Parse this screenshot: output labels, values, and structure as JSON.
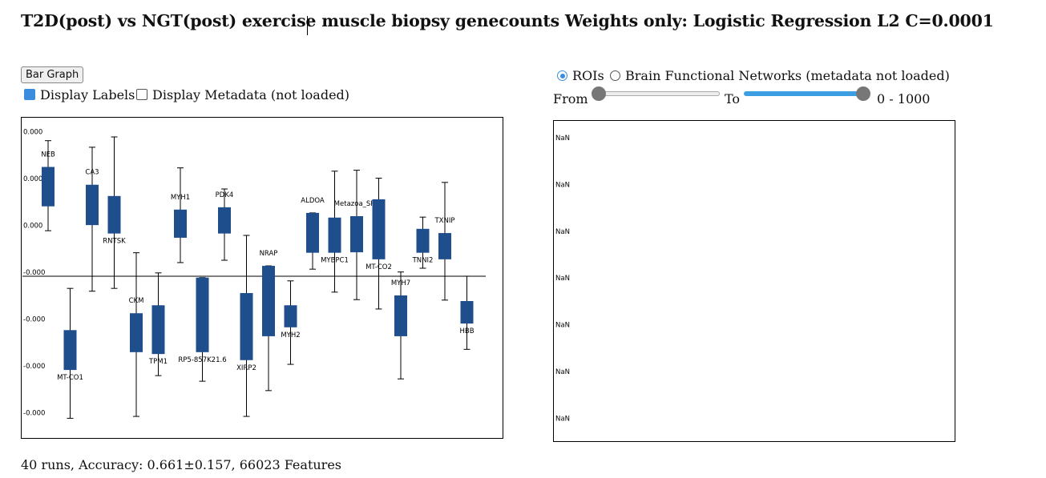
{
  "header": {
    "title": "T2D(post) vs NGT(post) exercise muscle biopsy genecounts Weights only: Logistic Regression L2 C=0.0001"
  },
  "controls": {
    "button": "Bar Graph",
    "display_labels": "Display Labels",
    "display_metadata": "Display Metadata (not loaded)",
    "roi_option": "ROIs",
    "networks_option": "Brain Functional Networks (metadata not loaded)",
    "from_label": "From",
    "to_label": "To",
    "range_text": "0 - 1000"
  },
  "chart_data": {
    "type": "box",
    "color": "#1f4e8c",
    "categories": [
      "NEB",
      "MT-CO1",
      "CA3",
      "RNTSK",
      "CKM",
      "TPM1",
      "MYH1",
      "RP5-857K21.6",
      "PDK4",
      "XIRP2",
      "NRAP",
      "MYH2",
      "ALDOA",
      "MYBPC1",
      "Metazoa_SRP",
      "MT-CO2",
      "MYH7",
      "TNNI2",
      "TXNIP",
      "HBB"
    ],
    "box_high": [
      0.000233,
      -0.000115,
      0.000195,
      0.000171,
      -7.9e-05,
      -6.2e-05,
      0.000142,
      -3e-06,
      0.000147,
      -3.6e-05,
      2.2e-05,
      -6.2e-05,
      0.000135,
      0.000125,
      0.000128,
      0.000164,
      -4.1e-05,
      0.000101,
      9.2e-05,
      -5.3e-05
    ],
    "box_low": [
      0.000149,
      -0.0002,
      0.000109,
      9.1e-05,
      -0.000162,
      -0.000166,
      8.2e-05,
      -0.000162,
      9.1e-05,
      -0.000179,
      -0.000128,
      -0.000109,
      5e-05,
      5e-05,
      5.1e-05,
      3.6e-05,
      -0.000128,
      5e-05,
      3.6e-05,
      -0.000101
    ],
    "whisker_high": [
      0.000289,
      -2.6e-05,
      0.000275,
      0.000297,
      5e-05,
      7e-06,
      0.000231,
      -3e-06,
      0.000186,
      8.7e-05,
      2.2e-05,
      -1e-05,
      0.000135,
      0.000224,
      0.000226,
      0.000209,
      9e-06,
      0.000126,
      0.0002,
      0
    ],
    "whisker_low": [
      9.7e-05,
      -0.000303,
      -3.2e-05,
      -2.6e-05,
      -0.000299,
      -0.000212,
      2.9e-05,
      -0.000224,
      3.4e-05,
      -0.000299,
      -0.000244,
      -0.000188,
      1.5e-05,
      -3.4e-05,
      -5e-05,
      -7e-05,
      -0.000219,
      1.7e-05,
      -5.1e-05,
      -0.000156
    ],
    "ylim": [
      -0.000345,
      0.000338
    ],
    "yticks": [
      {
        "value": 0.0003,
        "label": "0.000"
      },
      {
        "value": 0.0002,
        "label": "0.000"
      },
      {
        "value": 0.0001,
        "label": "0.000"
      },
      {
        "value": 0,
        "label": "-0.000"
      },
      {
        "value": -0.0001,
        "label": "-0.000"
      },
      {
        "value": -0.0002,
        "label": "-0.000"
      },
      {
        "value": -0.0003,
        "label": "-0.000"
      }
    ]
  },
  "right_panel": {
    "tick_labels": [
      "NaN",
      "NaN",
      "NaN",
      "NaN",
      "NaN",
      "NaN",
      "NaN"
    ]
  },
  "footer": {
    "summary": "40 runs, Accuracy: 0.661±0.157, 66023 Features"
  }
}
